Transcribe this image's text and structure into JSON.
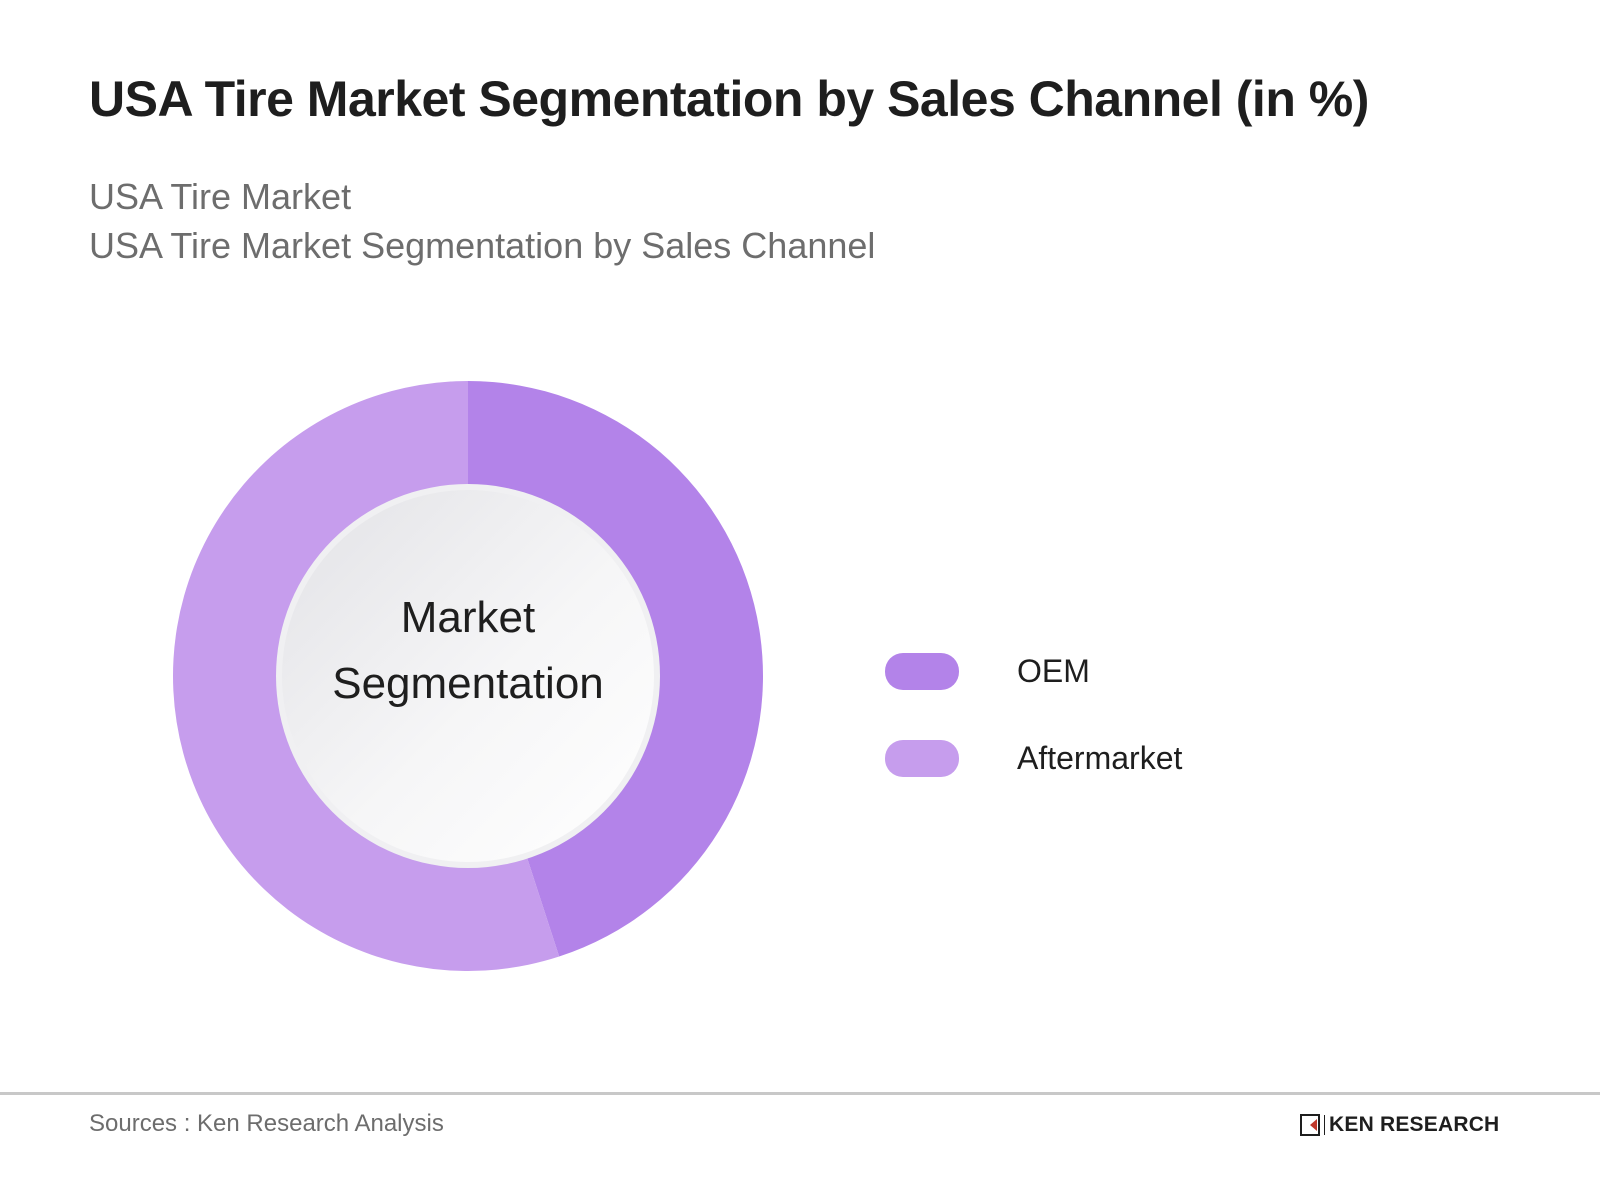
{
  "header": {
    "title": "USA Tire Market Segmentation by Sales Channel (in %)",
    "subtitle_line1": "USA Tire Market",
    "subtitle_line2": "USA Tire Market Segmentation by Sales Channel"
  },
  "donut": {
    "center_label_line1": "Market",
    "center_label_line2": "Segmentation"
  },
  "legend": {
    "items": [
      {
        "label": "OEM",
        "color": "#b383e9"
      },
      {
        "label": "Aftermarket",
        "color": "#c69ded"
      }
    ]
  },
  "footer": {
    "source": "Sources : Ken Research Analysis",
    "logo_text": "KEN RESEARCH"
  },
  "chart_data": {
    "type": "pie",
    "variant": "donut",
    "title": "USA Tire Market Segmentation by Sales Channel (in %)",
    "subtitle": [
      "USA Tire Market",
      "USA Tire Market Segmentation by Sales Channel"
    ],
    "center_text": "Market Segmentation",
    "categories": [
      "OEM",
      "Aftermarket"
    ],
    "values": [
      45,
      55
    ],
    "colors": [
      "#b383e9",
      "#c69ded"
    ],
    "start_angle": "top, clockwise",
    "legend_position": "right",
    "data_labels": false,
    "source": "Sources : Ken Research Analysis"
  }
}
